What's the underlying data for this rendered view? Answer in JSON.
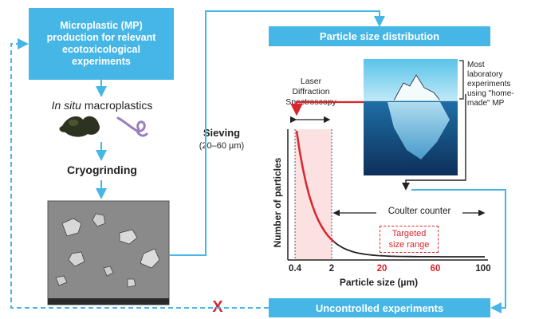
{
  "boxes": {
    "mp_title": [
      "Microplastic (MP)",
      "production for relevant",
      "ecotoxicological",
      "experiments"
    ],
    "psd_title": "Particle size distribution",
    "uncontrolled": "Uncontrolled experiments"
  },
  "steps": {
    "in_situ_italic": "In situ",
    "in_situ_rest": " macroplastics",
    "cryogrinding": "Cryogrinding",
    "sieving": "Sieving",
    "sieving_range": "(20–60 µm)"
  },
  "iceberg_note": [
    "Most",
    "laboratory",
    "experiments",
    "using \"home-",
    "made\" MP"
  ],
  "laser_label": [
    "Laser",
    "Diffraction",
    "Spectroscopy"
  ],
  "coulter_label": "Coulter counter",
  "targeted_label": [
    "Targeted",
    "size range"
  ],
  "cross_mark": "X",
  "colors": {
    "box_blue": "#45b6e6",
    "red": "#d9252b",
    "pink_band": "#fbe1e1"
  },
  "chart_data": {
    "type": "line",
    "xlabel": "Particle size (µm)",
    "ylabel": "Number of particles",
    "x_ticks": [
      {
        "value": 0.4,
        "label": "0.4",
        "color": "#222222"
      },
      {
        "value": 2,
        "label": "2",
        "color": "#222222"
      },
      {
        "value": 20,
        "label": "20",
        "color": "#d9252b"
      },
      {
        "value": 60,
        "label": "60",
        "color": "#d9252b"
      },
      {
        "value": 100,
        "label": "100",
        "color": "#222222"
      }
    ],
    "curve": "decreasing",
    "highlight_ranges": [
      {
        "name": "laser",
        "from": 0.4,
        "to": 2
      },
      {
        "name": "targeted",
        "from": 20,
        "to": 60
      }
    ]
  }
}
